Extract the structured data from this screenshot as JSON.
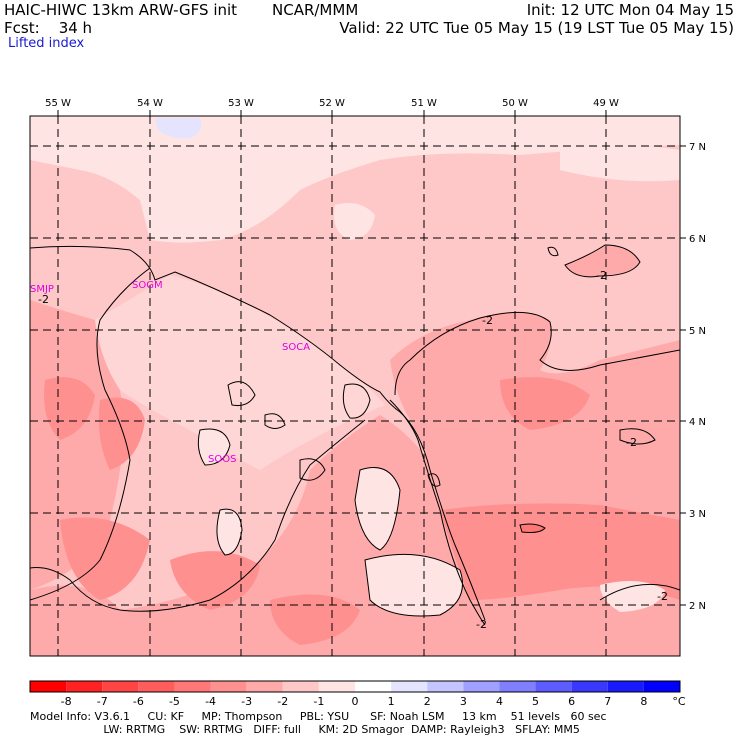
{
  "header": {
    "model_line": "HAIC-HIWC 13km ARW-GFS init",
    "forecast_label": "Fcst:",
    "forecast_hours": "34 h",
    "organization": "NCAR/MMM",
    "init_time": "Init: 12 UTC Mon 04 May 15",
    "valid_time": "Valid: 22 UTC Tue 05 May 15 (19 LST Tue 05 May 15)",
    "field_name": "Lifted index"
  },
  "map": {
    "lon_labels": [
      "55 W",
      "54 W",
      "53 W",
      "52 W",
      "51 W",
      "50 W",
      "49 W"
    ],
    "lat_labels": [
      "7 N",
      "6 N",
      "5 N",
      "4 N",
      "3 N",
      "2 N"
    ],
    "station_labels": [
      "SMJP",
      "SOGM",
      "SOCA",
      "SOOS"
    ],
    "contour_labels": [
      "-2",
      "-2",
      "-2",
      "-2",
      "-2",
      "-2"
    ]
  },
  "colorbar": {
    "ticks": [
      "-8",
      "-7",
      "-6",
      "-5",
      "-4",
      "-3",
      "-2",
      "-1",
      "0",
      "1",
      "2",
      "3",
      "4",
      "5",
      "6",
      "7",
      "8"
    ],
    "units": "°C",
    "colors": [
      "#ff0000",
      "#ff2222",
      "#ff4444",
      "#ff5c5c",
      "#ff7777",
      "#ff9090",
      "#ffaaaa",
      "#ffc8c8",
      "#ffe4e4",
      "#ffffff",
      "#e4e4ff",
      "#c4c4ff",
      "#a0a0ff",
      "#8080ff",
      "#5c5cff",
      "#3838ff",
      "#1a1aff",
      "#0000ff"
    ]
  },
  "footer": {
    "line1": "Model Info: V3.6.1     CU: KF     MP: Thompson     PBL: YSU      SF: Noah LSM     13 km    51 levels   60 sec",
    "line2": "                     LW: RRTMG    SW: RRTMG   DIFF: full     KM: 2D Smagor  DAMP: Rayleigh3   SFLAY: MM5"
  }
}
